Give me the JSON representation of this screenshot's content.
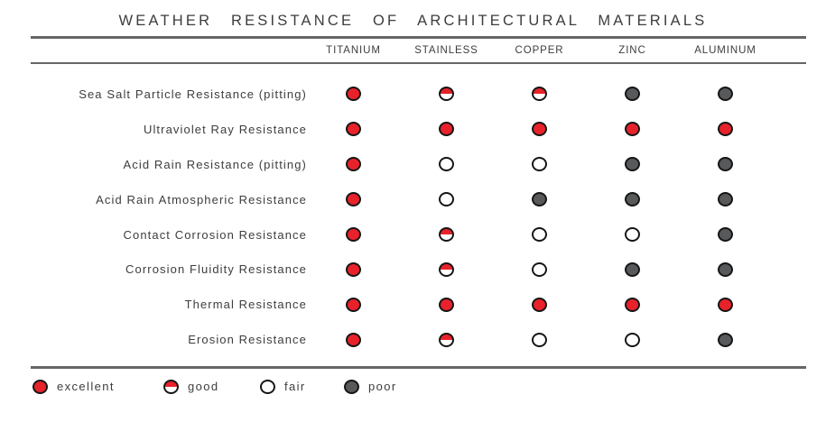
{
  "chart_data": {
    "type": "table",
    "title": "WEATHER RESISTANCE OF ARCHITECTURAL MATERIALS",
    "columns": [
      "TITANIUM",
      "STAINLESS",
      "COPPER",
      "ZINC",
      "ALUMINUM"
    ],
    "rows": [
      {
        "label": "Sea Salt Particle Resistance (pitting)",
        "ratings": [
          "excellent",
          "good",
          "good",
          "poor",
          "poor"
        ]
      },
      {
        "label": "Ultraviolet Ray Resistance",
        "ratings": [
          "excellent",
          "excellent",
          "excellent",
          "excellent",
          "excellent"
        ]
      },
      {
        "label": "Acid Rain Resistance (pitting)",
        "ratings": [
          "excellent",
          "fair",
          "fair",
          "poor",
          "poor"
        ]
      },
      {
        "label": "Acid Rain Atmospheric Resistance",
        "ratings": [
          "excellent",
          "fair",
          "poor",
          "poor",
          "poor"
        ]
      },
      {
        "label": "Contact Corrosion Resistance",
        "ratings": [
          "excellent",
          "good",
          "fair",
          "fair",
          "poor"
        ]
      },
      {
        "label": "Corrosion Fluidity Resistance",
        "ratings": [
          "excellent",
          "good",
          "fair",
          "poor",
          "poor"
        ]
      },
      {
        "label": "Thermal Resistance",
        "ratings": [
          "excellent",
          "excellent",
          "excellent",
          "excellent",
          "excellent"
        ]
      },
      {
        "label": "Erosion Resistance",
        "ratings": [
          "excellent",
          "good",
          "fair",
          "fair",
          "poor"
        ]
      }
    ],
    "legend": [
      {
        "key": "excellent",
        "label": "excellent"
      },
      {
        "key": "good",
        "label": "good"
      },
      {
        "key": "fair",
        "label": "fair"
      },
      {
        "key": "poor",
        "label": "poor"
      }
    ],
    "rating_scale": [
      "excellent",
      "good",
      "fair",
      "poor"
    ],
    "legend_position": "bottom-left",
    "grid": false
  },
  "colors": {
    "excellent": "#e8222a",
    "poor": "#58595b",
    "outline": "#151515",
    "line": "#666666",
    "text": "#3d3d3d"
  }
}
